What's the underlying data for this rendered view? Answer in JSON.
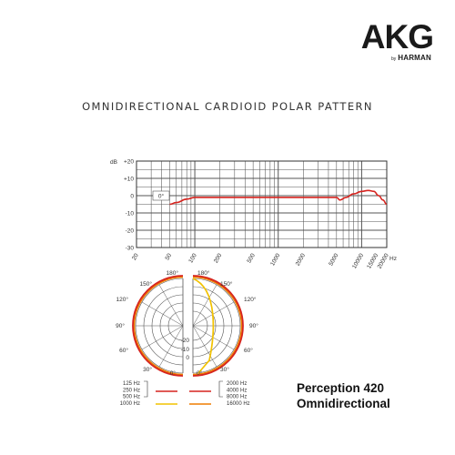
{
  "brand": {
    "name": "AKG",
    "by": "by",
    "parent": "HARMAN"
  },
  "title": "OMNIDIRECTIONAL CARDIOID POLAR PATTERN",
  "caption": {
    "line1": "Perception 420",
    "line2": "Omnidirectional"
  },
  "colors": {
    "red": "#d6241f",
    "orange": "#ef7d00",
    "yellow": "#f2c200",
    "grid": "#555555"
  },
  "chart_data": [
    {
      "type": "line",
      "title": "",
      "ylabel": "dB",
      "xunit": "Hz",
      "xscale": "log",
      "xlim": [
        20,
        20000
      ],
      "ylim": [
        -30,
        20
      ],
      "y_ticks": [
        "+20",
        "+10",
        "0",
        "-10",
        "-20",
        "-30"
      ],
      "x_ticks": [
        "20",
        "50",
        "100",
        "200",
        "500",
        "1000",
        "2000",
        "5000",
        "10000",
        "15000",
        "20000"
      ],
      "angle_label": "0°",
      "grid": true,
      "series": [
        {
          "color": "#d6241f",
          "x": [
            50,
            60,
            80,
            100,
            150,
            200,
            500,
            1000,
            2000,
            4000,
            5000,
            5500,
            6500,
            8000,
            10000,
            12000,
            14000,
            16000,
            18000,
            20000
          ],
          "y": [
            -5,
            -4,
            -2,
            -1,
            -1,
            -1,
            -1,
            -1,
            -1,
            -1,
            -1,
            -2.5,
            -1,
            1,
            2.5,
            3,
            2.5,
            0,
            -2.5,
            -5
          ]
        }
      ]
    },
    {
      "type": "polar",
      "angle_labels": [
        "180°",
        "150°",
        "120°",
        "90°",
        "60°",
        "30°",
        "0°"
      ],
      "ring_labels": [
        "-20",
        "-10",
        "0"
      ],
      "legend": {
        "left": [
          "125 Hz",
          "250 Hz",
          "500 Hz",
          "1000 Hz"
        ],
        "right": [
          "2000 Hz",
          "4000 Hz",
          "8000 Hz",
          "16000 Hz"
        ]
      },
      "left_patterns": [
        {
          "color": "#d6241f",
          "level_db": 0
        },
        {
          "color": "#ef7d00",
          "level_db": 0
        }
      ],
      "right_patterns": [
        {
          "color": "#d6241f",
          "level_db": 0
        },
        {
          "color": "#ef7d00",
          "level_db": -1
        },
        {
          "color": "#f2c200",
          "shape": "inner-lobe"
        }
      ]
    }
  ]
}
